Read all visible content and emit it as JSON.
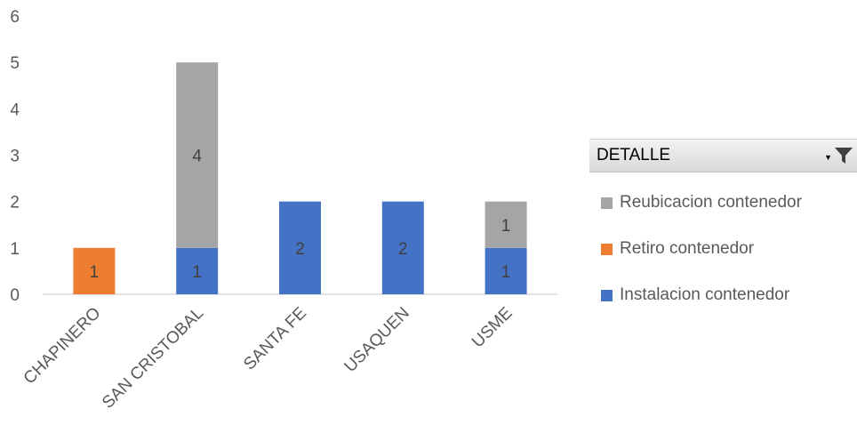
{
  "chart_data": {
    "type": "bar",
    "stacked": true,
    "categories": [
      "CHAPINERO",
      "SAN CRISTOBAL",
      "SANTA FE",
      "USAQUEN",
      "USME"
    ],
    "series": [
      {
        "name": "Instalacion contenedor",
        "color": "#4472C4",
        "values": [
          0,
          1,
          2,
          2,
          1
        ]
      },
      {
        "name": "Retiro contenedor",
        "color": "#ED7D31",
        "values": [
          1,
          0,
          0,
          0,
          0
        ]
      },
      {
        "name": "Reubicacion contenedor",
        "color": "#A5A5A5",
        "values": [
          0,
          4,
          0,
          0,
          1
        ]
      }
    ],
    "ylim": [
      0,
      6
    ],
    "yticks": [
      0,
      1,
      2,
      3,
      4,
      5,
      6
    ],
    "grid": false,
    "legend_position": "right"
  },
  "legend": {
    "title": "DETALLE",
    "filter_icon": "funnel-icon",
    "items": [
      "Reubicacion contenedor",
      "Retiro contenedor",
      "Instalacion contenedor"
    ],
    "item_colors": [
      "#A5A5A5",
      "#ED7D31",
      "#4472C4"
    ]
  }
}
